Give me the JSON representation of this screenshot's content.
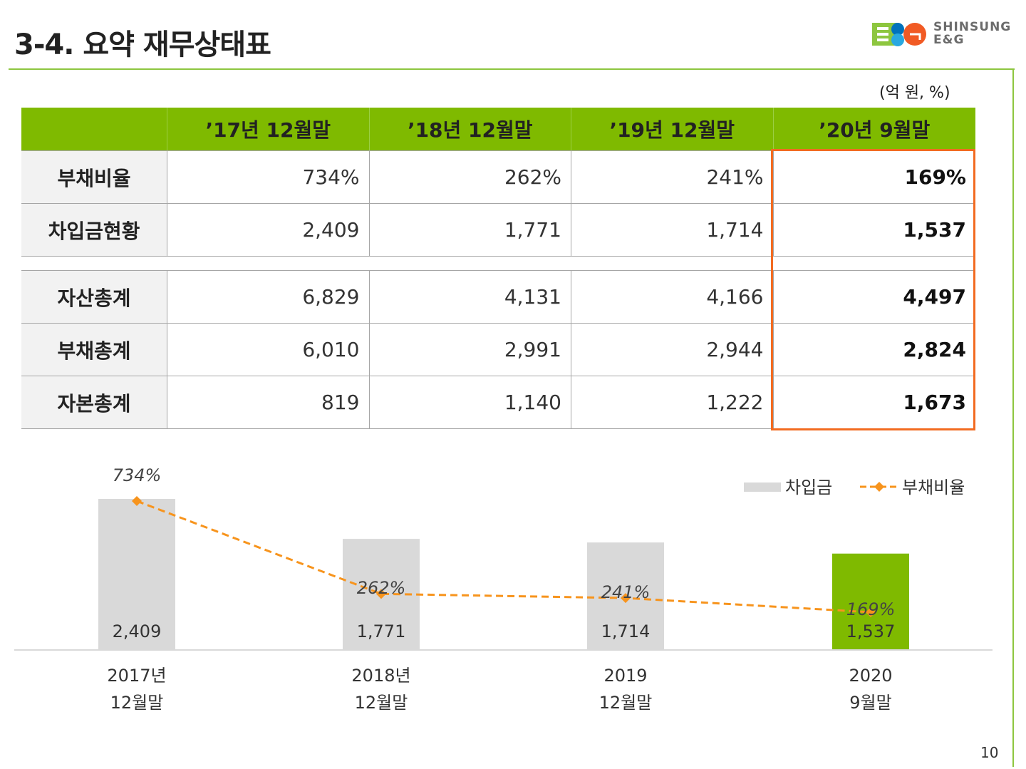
{
  "header": {
    "title": "3-4. 요약 재무상태표",
    "logo_line1": "SHINSUNG",
    "logo_line2": "E&G"
  },
  "unit_note": "(억 원, %)",
  "table": {
    "columns": [
      "",
      "’17년 12월말",
      "’18년 12월말",
      "’19년 12월말",
      "’20년 9월말"
    ],
    "groups": [
      [
        {
          "label": "부채비율",
          "values": [
            "734%",
            "262%",
            "241%",
            "169%"
          ]
        },
        {
          "label": "차입금현황",
          "values": [
            "2,409",
            "1,771",
            "1,714",
            "1,537"
          ]
        }
      ],
      [
        {
          "label": "자산총계",
          "values": [
            "6,829",
            "4,131",
            "4,166",
            "4,497"
          ]
        },
        {
          "label": "부채총계",
          "values": [
            "6,010",
            "2,991",
            "2,944",
            "2,824"
          ]
        },
        {
          "label": "자본총계",
          "values": [
            "819",
            "1,140",
            "1,222",
            "1,673"
          ]
        }
      ]
    ]
  },
  "chart_data": {
    "type": "bar",
    "categories": [
      [
        "2017년",
        "12월말"
      ],
      [
        "2018년",
        "12월말"
      ],
      [
        "2019",
        "12월말"
      ],
      [
        "2020",
        "9월말"
      ]
    ],
    "series": [
      {
        "name": "차입금",
        "kind": "bar",
        "values": [
          2409,
          1771,
          1714,
          1537
        ],
        "labels": [
          "2,409",
          "1,771",
          "1,714",
          "1,537"
        ],
        "color": "#d9d9d9",
        "highlight_color": "#7fba00",
        "highlight_index": 3
      },
      {
        "name": "부채비율",
        "kind": "line",
        "values": [
          734,
          262,
          241,
          169
        ],
        "labels": [
          "734%",
          "262%",
          "241%",
          "169%"
        ],
        "color": "#f7941d",
        "style": "dashed",
        "marker": "diamond"
      }
    ],
    "legend": "top-right",
    "grid": false
  },
  "page_number": "10",
  "colors": {
    "accent_green": "#7fba00",
    "highlight_orange": "#f26b21",
    "line_orange": "#f7941d",
    "bar_gray": "#d9d9d9"
  }
}
